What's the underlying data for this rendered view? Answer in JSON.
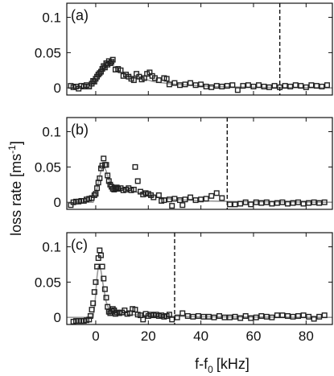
{
  "chart_data": {
    "type": "scatter",
    "xlabel": "f-f",
    "xlabel_sub": "0",
    "xlabel_unit": "[kHz]",
    "ylabel": "loss rate [ms",
    "ylabel_sup": "-1",
    "ylabel_end": "]",
    "xlim": [
      -11,
      90
    ],
    "ylim": [
      -0.01,
      0.12
    ],
    "x_ticks": [
      0,
      20,
      40,
      60,
      80
    ],
    "x_tick_labels": [
      "0",
      "20",
      "40",
      "60",
      "80"
    ],
    "y_ticks": [
      0,
      0.05,
      0.1
    ],
    "y_tick_labels": [
      "0",
      "0.05",
      "0.1"
    ],
    "panels": [
      {
        "label": "(a)",
        "cutoff": 70,
        "points": [
          [
            -9.5,
            0.003
          ],
          [
            -8.5,
            0.001
          ],
          [
            -7.5,
            0.002
          ],
          [
            -6.5,
            -0.001
          ],
          [
            -5.5,
            0.003
          ],
          [
            -4.5,
            0.002
          ],
          [
            -3.5,
            0.004
          ],
          [
            -2.5,
            0.002
          ],
          [
            -1.5,
            0.006
          ],
          [
            -1,
            0.01
          ],
          [
            -0.5,
            0.009
          ],
          [
            0,
            0.013
          ],
          [
            0.5,
            0.016
          ],
          [
            1,
            0.019
          ],
          [
            1.5,
            0.021
          ],
          [
            2,
            0.023
          ],
          [
            2.5,
            0.027
          ],
          [
            3,
            0.031
          ],
          [
            3.5,
            0.029
          ],
          [
            4,
            0.035
          ],
          [
            4.5,
            0.033
          ],
          [
            5,
            0.038
          ],
          [
            5.5,
            0.035
          ],
          [
            6,
            0.037
          ],
          [
            6.5,
            0.04
          ],
          [
            7.5,
            0.026
          ],
          [
            8.5,
            0.027
          ],
          [
            9.5,
            0.025
          ],
          [
            10.5,
            0.017
          ],
          [
            11.5,
            0.019
          ],
          [
            12.5,
            0.016
          ],
          [
            13.5,
            0.013
          ],
          [
            14.5,
            0.011
          ],
          [
            15.5,
            0.02
          ],
          [
            16.5,
            0.016
          ],
          [
            17.5,
            0.012
          ],
          [
            18.5,
            0.014
          ],
          [
            19.5,
            0.02
          ],
          [
            20.5,
            0.022
          ],
          [
            21.5,
            0.017
          ],
          [
            22.5,
            0.014
          ],
          [
            24,
            0.011
          ],
          [
            26,
            0.014
          ],
          [
            27,
            0.013
          ],
          [
            28,
            0.005
          ],
          [
            30,
            0.007
          ],
          [
            32,
            0.004
          ],
          [
            34,
            0.005
          ],
          [
            36,
            0.007
          ],
          [
            38,
            0.004
          ],
          [
            40,
            0.005
          ],
          [
            42,
            0.002
          ],
          [
            44,
            0.001
          ],
          [
            46,
            0.003
          ],
          [
            48,
            0.002
          ],
          [
            50,
            0.003
          ],
          [
            52,
            0.004
          ],
          [
            54,
            -0.003
          ],
          [
            56,
            0.003
          ],
          [
            58,
            0.004
          ],
          [
            60,
            0.002
          ],
          [
            62,
            0.004
          ],
          [
            64,
            0.002
          ],
          [
            66,
            0.001
          ],
          [
            68,
            0.003
          ],
          [
            70,
            0.001
          ],
          [
            72,
            0.003
          ],
          [
            74,
            0.002
          ],
          [
            76,
            0.004
          ],
          [
            78,
            0.003
          ],
          [
            80,
            0.001
          ],
          [
            82,
            0.004
          ],
          [
            84,
            0.003
          ],
          [
            86,
            0.002
          ],
          [
            88,
            0.004
          ]
        ],
        "fit": [
          [
            -11,
            0
          ],
          [
            -2,
            0
          ],
          [
            0,
            0.012
          ],
          [
            2,
            0.024
          ],
          [
            4,
            0.031
          ],
          [
            6,
            0.034
          ],
          [
            8,
            0.027
          ],
          [
            10,
            0.021
          ],
          [
            14,
            0.016
          ],
          [
            18,
            0.013
          ],
          [
            22,
            0.009
          ],
          [
            28,
            0.006
          ],
          [
            35,
            0.004
          ],
          [
            45,
            0.002
          ],
          [
            60,
            0.001
          ],
          [
            90,
            0
          ]
        ]
      },
      {
        "label": "(b)",
        "cutoff": 50,
        "points": [
          [
            -9.5,
            -0.004
          ],
          [
            -8.5,
            0
          ],
          [
            -7.5,
            0.001
          ],
          [
            -6.5,
            0.001
          ],
          [
            -5.5,
            0.002
          ],
          [
            -4.5,
            0.002
          ],
          [
            -3.5,
            0.004
          ],
          [
            -2.5,
            0.005
          ],
          [
            -1.5,
            0.006
          ],
          [
            -0.5,
            0.01
          ],
          [
            0,
            0.012
          ],
          [
            0.5,
            0.02
          ],
          [
            1,
            0.028
          ],
          [
            1.5,
            0.034
          ],
          [
            2,
            0.048
          ],
          [
            2.5,
            0.052
          ],
          [
            3,
            0.062
          ],
          [
            3.5,
            0.053
          ],
          [
            4,
            0.053
          ],
          [
            4.5,
            0.038
          ],
          [
            5,
            0.03
          ],
          [
            5.5,
            0.025
          ],
          [
            6,
            0.022
          ],
          [
            6.5,
            0.019
          ],
          [
            7,
            0.018
          ],
          [
            7.5,
            0.02
          ],
          [
            8,
            0.021
          ],
          [
            8.5,
            0.019
          ],
          [
            9.5,
            0.02
          ],
          [
            10.5,
            0.017
          ],
          [
            11.5,
            0.018
          ],
          [
            12.5,
            0.02
          ],
          [
            13.5,
            0.017
          ],
          [
            14.5,
            0.018
          ],
          [
            15,
            0.05
          ],
          [
            16,
            0.03
          ],
          [
            17,
            0.015
          ],
          [
            18,
            0.011
          ],
          [
            19,
            0.013
          ],
          [
            20,
            0.012
          ],
          [
            21,
            0.01
          ],
          [
            22,
            0.007
          ],
          [
            24,
            0.01
          ],
          [
            25,
            0.002
          ],
          [
            26,
            0.003
          ],
          [
            28,
            0.004
          ],
          [
            29,
            -0.005
          ],
          [
            30,
            0.005
          ],
          [
            32,
            0.003
          ],
          [
            33,
            -0.004
          ],
          [
            34,
            0.004
          ],
          [
            36,
            0.007
          ],
          [
            38,
            0.003
          ],
          [
            40,
            0.004
          ],
          [
            42,
            0.005
          ],
          [
            44,
            0.009
          ],
          [
            46,
            0.013
          ],
          [
            48,
            0.006
          ],
          [
            51,
            -0.003
          ],
          [
            53,
            -0.003
          ],
          [
            55,
            -0.002
          ],
          [
            57,
            0
          ],
          [
            59,
            -0.003
          ],
          [
            61,
            0
          ],
          [
            63,
            -0.001
          ],
          [
            65,
            0
          ],
          [
            67,
            -0.002
          ],
          [
            69,
            -0.001
          ],
          [
            71,
            0
          ],
          [
            73,
            -0.002
          ],
          [
            75,
            -0.001
          ],
          [
            77,
            0
          ],
          [
            79,
            -0.002
          ],
          [
            81,
            -0.001
          ],
          [
            83,
            0
          ],
          [
            85,
            -0.001
          ],
          [
            87,
            0
          ]
        ],
        "fit": [
          [
            -11,
            0
          ],
          [
            -1,
            0
          ],
          [
            0.5,
            0.02
          ],
          [
            2,
            0.045
          ],
          [
            3,
            0.052
          ],
          [
            4,
            0.044
          ],
          [
            5,
            0.032
          ],
          [
            6,
            0.024
          ],
          [
            8,
            0.02
          ],
          [
            10,
            0.019
          ],
          [
            14,
            0.016
          ],
          [
            18,
            0.012
          ],
          [
            22,
            0.008
          ],
          [
            30,
            0.004
          ],
          [
            40,
            0.002
          ],
          [
            55,
            0.001
          ],
          [
            90,
            0
          ]
        ]
      },
      {
        "label": "(c)",
        "cutoff": 30,
        "points": [
          [
            -8.5,
            -0.006
          ],
          [
            -7.5,
            -0.005
          ],
          [
            -6.5,
            -0.005
          ],
          [
            -5.5,
            -0.005
          ],
          [
            -4.5,
            -0.005
          ],
          [
            -3.5,
            -0.004
          ],
          [
            -2.5,
            -0.003
          ],
          [
            -2,
            0.002
          ],
          [
            -1.5,
            0.011
          ],
          [
            -1,
            0.02
          ],
          [
            -0.5,
            0.036
          ],
          [
            0,
            0.05
          ],
          [
            0.5,
            0.072
          ],
          [
            1,
            0.084
          ],
          [
            1.5,
            0.095
          ],
          [
            2,
            0.088
          ],
          [
            2.5,
            0.072
          ],
          [
            3,
            0.055
          ],
          [
            3.5,
            0.04
          ],
          [
            4,
            0.028
          ],
          [
            4.5,
            0.015
          ],
          [
            5,
            0.008
          ],
          [
            5.5,
            0.006
          ],
          [
            6,
            0.009
          ],
          [
            6.5,
            0.012
          ],
          [
            7,
            0.01
          ],
          [
            7.5,
            0.005
          ],
          [
            8,
            0.007
          ],
          [
            9,
            0.006
          ],
          [
            10,
            0.007
          ],
          [
            11,
            0.01
          ],
          [
            12,
            0.005
          ],
          [
            13,
            0.006
          ],
          [
            14,
            0.012
          ],
          [
            15,
            0.011
          ],
          [
            16,
            0.004
          ],
          [
            17,
            0.003
          ],
          [
            18,
            -0.003
          ],
          [
            19,
            0.005
          ],
          [
            20,
            0.002
          ],
          [
            21,
            0.004
          ],
          [
            22,
            0.003
          ],
          [
            23,
            0.004
          ],
          [
            24,
            0.002
          ],
          [
            25,
            0.003
          ],
          [
            26,
            0.001
          ],
          [
            27,
            0.002
          ],
          [
            28,
            0.004
          ],
          [
            29,
            -0.003
          ],
          [
            31,
            0
          ],
          [
            33,
            0.006
          ],
          [
            35,
            0.002
          ],
          [
            37,
            0.001
          ],
          [
            39,
            0.002
          ],
          [
            41,
            0.001
          ],
          [
            43,
            0.001
          ],
          [
            45,
            0
          ],
          [
            47,
            0.002
          ],
          [
            49,
            0
          ],
          [
            51,
            0
          ],
          [
            53,
            0.001
          ],
          [
            55,
            -0.001
          ],
          [
            57,
            0.002
          ],
          [
            59,
            -0.001
          ],
          [
            61,
            0
          ],
          [
            63,
            0.002
          ],
          [
            65,
            0.001
          ],
          [
            67,
            0
          ],
          [
            69,
            0.003
          ],
          [
            71,
            0.003
          ],
          [
            73,
            0.002
          ],
          [
            75,
            0.001
          ],
          [
            77,
            0.002
          ],
          [
            79,
            0.003
          ],
          [
            81,
            0.001
          ],
          [
            83,
            -0.002
          ],
          [
            85,
            0.001
          ],
          [
            87,
            0.003
          ]
        ],
        "fit": [
          [
            -11,
            0
          ],
          [
            -1,
            0
          ],
          [
            -0.3,
            0.02
          ],
          [
            0.5,
            0.058
          ],
          [
            1,
            0.072
          ],
          [
            1.5,
            0.074
          ],
          [
            2,
            0.066
          ],
          [
            3,
            0.042
          ],
          [
            4,
            0.022
          ],
          [
            5,
            0.011
          ],
          [
            6,
            0.007
          ],
          [
            8,
            0.005
          ],
          [
            12,
            0.004
          ],
          [
            18,
            0.003
          ],
          [
            25,
            0.002
          ],
          [
            40,
            0.001
          ],
          [
            90,
            0
          ]
        ]
      }
    ]
  }
}
